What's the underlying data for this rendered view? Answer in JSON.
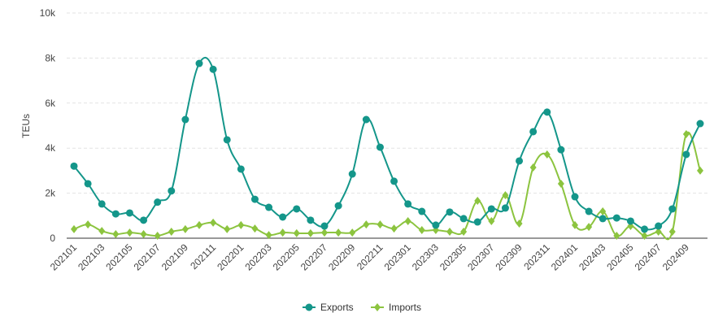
{
  "chart_data": {
    "type": "line",
    "title": "",
    "xlabel": "",
    "ylabel": "TEUs",
    "ylim": [
      0,
      10000
    ],
    "yticks": [
      0,
      2000,
      4000,
      6000,
      8000,
      10000
    ],
    "ytick_labels": [
      "0",
      "2k",
      "4k",
      "6k",
      "8k",
      "10k"
    ],
    "grid": true,
    "legend_position": "bottom-center",
    "x": [
      "202101",
      "202102",
      "202103",
      "202104",
      "202105",
      "202106",
      "202107",
      "202108",
      "202109",
      "202110",
      "202111",
      "202112",
      "202201",
      "202202",
      "202203",
      "202204",
      "202205",
      "202206",
      "202207",
      "202208",
      "202209",
      "202210",
      "202211",
      "202212",
      "202301",
      "202302",
      "202303",
      "202304",
      "202305",
      "202306",
      "202307",
      "202308",
      "202309",
      "202310",
      "202311",
      "202312",
      "202401",
      "202402",
      "202403",
      "202404",
      "202405",
      "202406",
      "202407",
      "202408",
      "202409",
      "202410"
    ],
    "series": [
      {
        "name": "Exports",
        "color": "#14968a",
        "marker": "circle",
        "values": [
          3200,
          2420,
          1520,
          1080,
          1120,
          800,
          1600,
          2100,
          5270,
          7760,
          7500,
          4370,
          3070,
          1730,
          1370,
          940,
          1300,
          800,
          540,
          1440,
          2850,
          5270,
          4040,
          2530,
          1520,
          1190,
          580,
          1160,
          870,
          720,
          1300,
          1340,
          3430,
          4730,
          5600,
          3930,
          1840,
          1190,
          870,
          900,
          760,
          400,
          540,
          1300,
          3720,
          5090
        ]
      },
      {
        "name": "Imports",
        "color": "#8cc43f",
        "marker": "diamond",
        "values": [
          400,
          610,
          320,
          180,
          250,
          180,
          110,
          290,
          400,
          580,
          690,
          400,
          580,
          430,
          140,
          250,
          220,
          220,
          250,
          250,
          250,
          610,
          610,
          430,
          760,
          360,
          360,
          290,
          290,
          1660,
          760,
          1910,
          650,
          3140,
          3720,
          2420,
          580,
          500,
          1190,
          110,
          540,
          110,
          290,
          290,
          4620,
          3000
        ]
      }
    ]
  }
}
